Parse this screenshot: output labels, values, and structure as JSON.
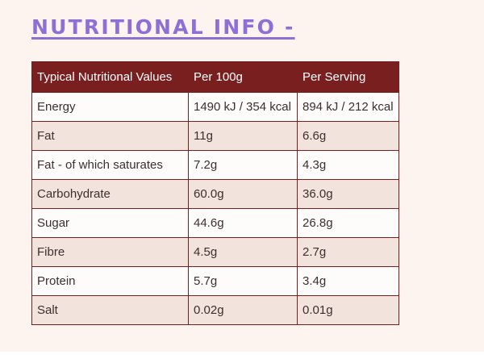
{
  "heading": "NUTRITIONAL INFO -",
  "table": {
    "headers": [
      "Typical Nutritional Values",
      "Per 100g",
      "Per Serving"
    ],
    "rows": [
      [
        "Energy",
        "1490 kJ / 354 kcal",
        "894 kJ / 212 kcal"
      ],
      [
        "Fat",
        "11g",
        "6.6g"
      ],
      [
        "Fat - of which saturates",
        "7.2g",
        "4.3g"
      ],
      [
        "Carbohydrate",
        "60.0g",
        "36.0g"
      ],
      [
        "Sugar",
        "44.6g",
        "26.8g"
      ],
      [
        "Fibre",
        "4.5g",
        "2.7g"
      ],
      [
        "Protein",
        "5.7g",
        "3.4g"
      ],
      [
        "Salt",
        "0.02g",
        "0.01g"
      ]
    ]
  },
  "colors": {
    "heading": "#8f6fd6",
    "header_bg": "#7a1f1f",
    "row_alt_bg": "#f3e3dd",
    "panel_bg": "#fdf4ef"
  }
}
